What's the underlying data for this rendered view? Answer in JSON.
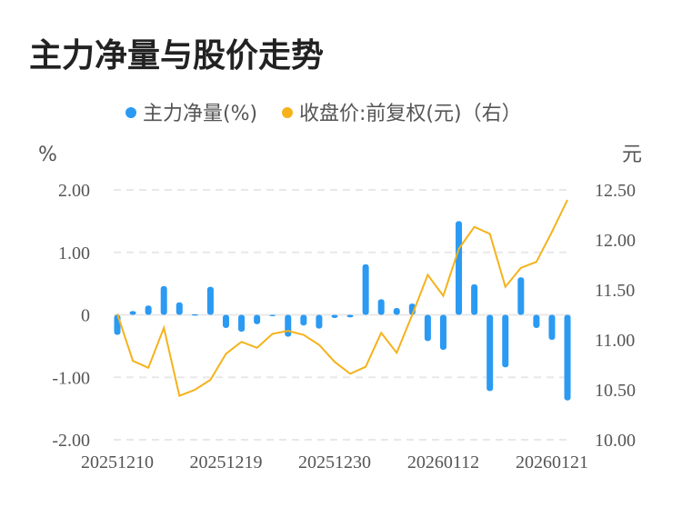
{
  "title": "主力净量与股价走势",
  "chart_data": {
    "type": "bar+line",
    "title": "主力净量与股价走势",
    "legend": [
      "主力净量(%)",
      "收盘价:前复权(元)（右）"
    ],
    "legend_position": "top",
    "ylabel_left": "%",
    "ylabel_right": "元",
    "ylim_left": [
      -2,
      2
    ],
    "ylim_right": [
      10,
      12.5
    ],
    "yticks_left": [
      "2.00",
      "1.00",
      "0",
      "-1.00",
      "-2.00"
    ],
    "yticks_left_values": [
      2,
      1,
      0,
      -1,
      -2
    ],
    "yticks_right": [
      "12.50",
      "12.00",
      "11.50",
      "11.00",
      "10.50",
      "10.00"
    ],
    "yticks_right_values": [
      12.5,
      12,
      11.5,
      11,
      10.5,
      10
    ],
    "xtick_labels": [
      "20251210",
      "20251219",
      "20251230",
      "20260112",
      "20260121"
    ],
    "xtick_indices": [
      0,
      7,
      14,
      21,
      28
    ],
    "colors": {
      "bar": "#2b9af3",
      "line": "#f5b21b"
    },
    "series": [
      {
        "name": "主力净量(%)",
        "type": "bar",
        "values": [
          -0.32,
          0.06,
          0.15,
          0.46,
          0.2,
          0.01,
          0.45,
          -0.21,
          -0.27,
          -0.15,
          -0.01,
          -0.35,
          -0.17,
          -0.22,
          -0.05,
          -0.04,
          0.81,
          0.25,
          0.11,
          0.18,
          -0.42,
          -0.56,
          1.5,
          0.49,
          -1.22,
          -0.84,
          0.6,
          -0.21,
          -0.4,
          -1.37
        ]
      },
      {
        "name": "收盘价:前复权(元)",
        "type": "line",
        "values": [
          11.26,
          10.79,
          10.72,
          11.12,
          10.44,
          10.5,
          10.6,
          10.86,
          10.98,
          10.92,
          11.06,
          11.09,
          11.05,
          10.95,
          10.78,
          10.66,
          10.73,
          11.07,
          10.87,
          11.25,
          11.65,
          11.44,
          11.91,
          12.13,
          12.06,
          11.53,
          11.72,
          11.78,
          12.08,
          12.4
        ]
      }
    ]
  }
}
